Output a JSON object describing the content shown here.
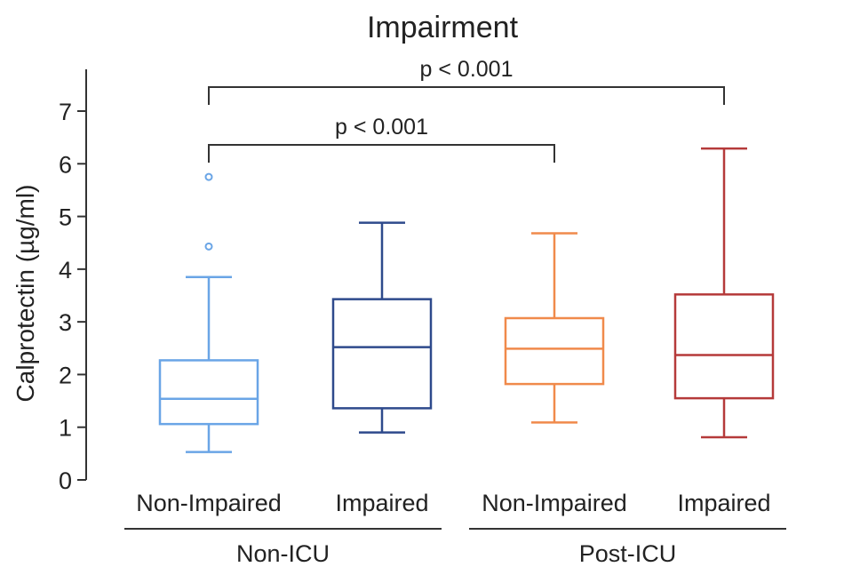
{
  "chart_data": {
    "type": "box",
    "title": "Impairment",
    "ylabel": "Calprotectin (µg/ml)",
    "ylim": [
      0,
      7.5
    ],
    "yticks": [
      "0",
      "1",
      "2",
      "3",
      "4",
      "5",
      "6",
      "7"
    ],
    "groups": [
      {
        "label": "Non-ICU",
        "categories": [
          "Non-Impaired",
          "Impaired"
        ]
      },
      {
        "label": "Post-ICU",
        "categories": [
          "Non-Impaired",
          "Impaired"
        ]
      }
    ],
    "series": [
      {
        "group": "Non-ICU",
        "category": "Non-Impaired",
        "whisker_low": 0.53,
        "q1": 1.06,
        "median": 1.54,
        "q3": 2.27,
        "whisker_high": 3.85,
        "outliers": [
          4.43,
          5.75
        ],
        "color": "#6aa5e6"
      },
      {
        "group": "Non-ICU",
        "category": "Impaired",
        "whisker_low": 0.9,
        "q1": 1.36,
        "median": 2.52,
        "q3": 3.43,
        "whisker_high": 4.88,
        "outliers": [],
        "color": "#2e4a8c"
      },
      {
        "group": "Post-ICU",
        "category": "Non-Impaired",
        "whisker_low": 1.09,
        "q1": 1.82,
        "median": 2.49,
        "q3": 3.07,
        "whisker_high": 4.68,
        "outliers": [],
        "color": "#f08a4b"
      },
      {
        "group": "Post-ICU",
        "category": "Impaired",
        "whisker_low": 0.81,
        "q1": 1.55,
        "median": 2.37,
        "q3": 3.52,
        "whisker_high": 6.29,
        "outliers": [],
        "color": "#b53a3a"
      }
    ],
    "comparisons": [
      {
        "from": 0,
        "to": 2,
        "label": "p < 0.001"
      },
      {
        "from": 0,
        "to": 3,
        "label": "p < 0.001"
      }
    ]
  }
}
